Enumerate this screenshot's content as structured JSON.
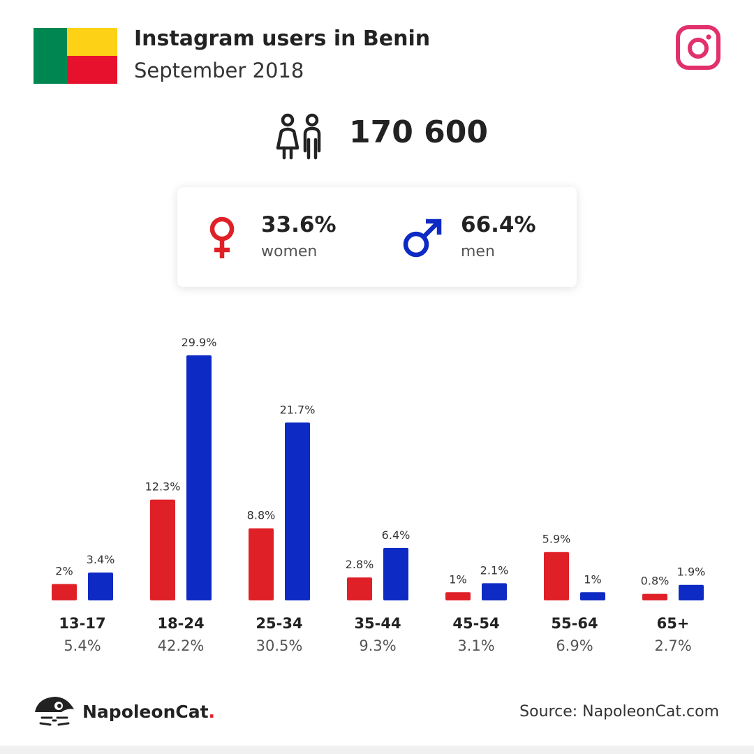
{
  "header": {
    "title": "Instagram users in Benin",
    "subtitle": "September 2018",
    "flag_colors": {
      "green": "#008751",
      "yellow": "#FCD116",
      "red": "#E8112D"
    },
    "app_icon": "instagram-icon",
    "app_color": "#E1306C"
  },
  "summary": {
    "icon": "users-icon",
    "total": "170 600"
  },
  "gender": {
    "women": {
      "icon": "female-symbol-icon",
      "percent": "33.6%",
      "label": "women",
      "color": "#E02027"
    },
    "men": {
      "icon": "male-symbol-icon",
      "percent": "66.4%",
      "label": "men",
      "color": "#0E2AC4"
    }
  },
  "chart_data": {
    "type": "bar",
    "categories": [
      "13-17",
      "18-24",
      "25-34",
      "35-44",
      "45-54",
      "55-64",
      "65+"
    ],
    "category_totals": [
      "5.4%",
      "42.2%",
      "30.5%",
      "9.3%",
      "3.1%",
      "6.9%",
      "2.7%"
    ],
    "series": [
      {
        "values": [
          2,
          12.3,
          8.8,
          2.8,
          1,
          5.9,
          0.8
        ],
        "labels": [
          "2%",
          "12.3%",
          "8.8%",
          "2.8%",
          "1%",
          "5.9%",
          "0.8%"
        ],
        "color": "#E02027"
      },
      {
        "values": [
          3.4,
          29.9,
          21.7,
          6.4,
          2.1,
          1,
          1.9
        ],
        "labels": [
          "3.4%",
          "29.9%",
          "21.7%",
          "6.4%",
          "2.1%",
          "1%",
          "1.9%"
        ],
        "color": "#0E2AC4"
      }
    ],
    "grid": false,
    "legend": "none"
  },
  "footer": {
    "logo_icon": "napoleoncat-logo-icon",
    "brand": "NapoleonCat",
    "brand_dot": ".",
    "source": "Source: NapoleonCat.com"
  }
}
